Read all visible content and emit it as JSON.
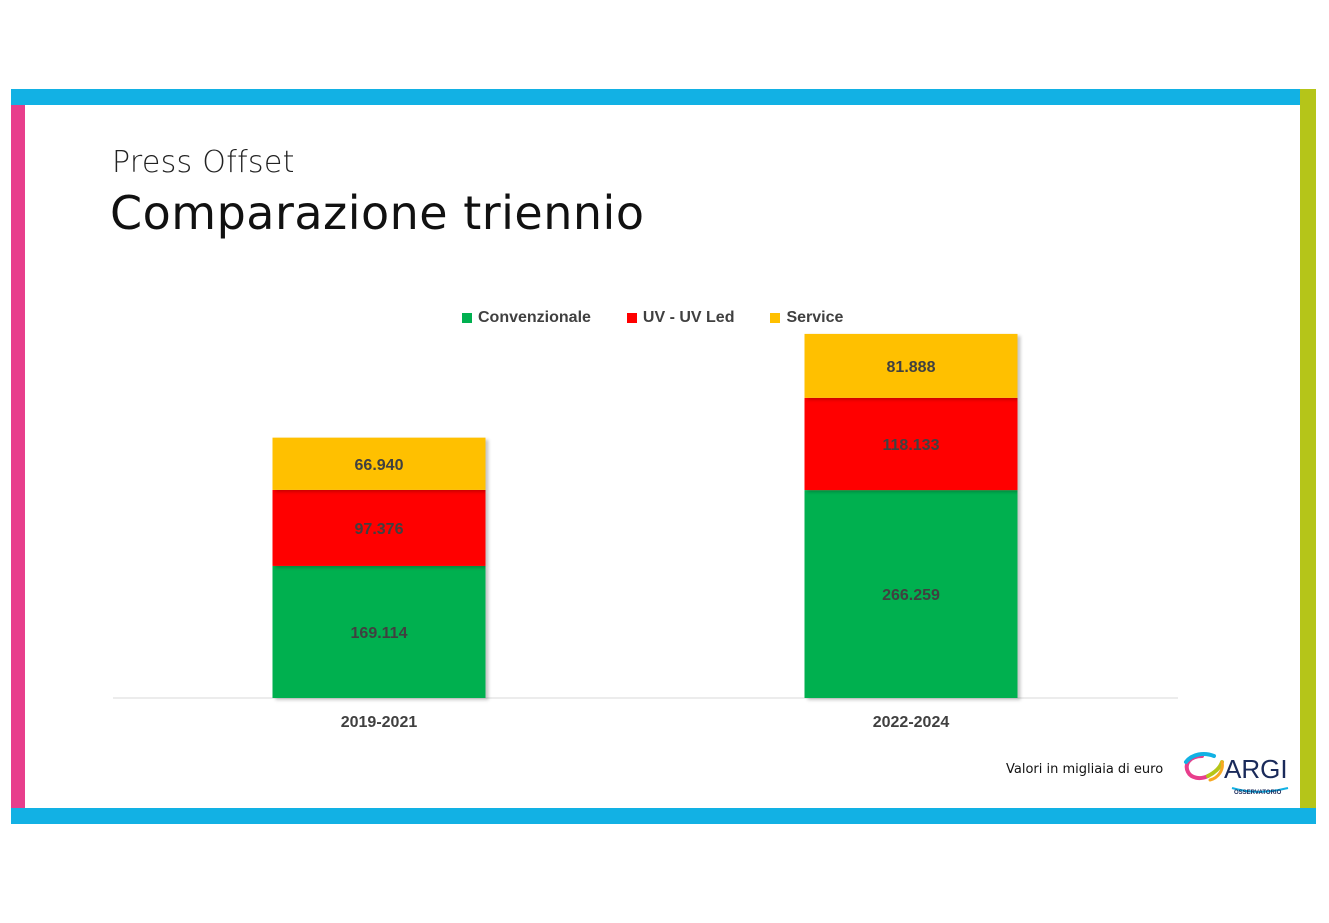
{
  "slide": {
    "subtitle": "Press Offset",
    "title": "Comparazione triennio",
    "note": "Valori in migliaia di euro"
  },
  "logo": {
    "text": "ARGI",
    "subtext": "OSSERVATORIO"
  },
  "colors": {
    "frame_top_bottom": "#12b1e4",
    "frame_left": "#e83e8c",
    "frame_right": "#b5c519"
  },
  "chart_data": {
    "type": "bar",
    "stacked": true,
    "categories": [
      "2019-2021",
      "2022-2024"
    ],
    "series": [
      {
        "name": "Convenzionale",
        "color": "#00b050",
        "values": [
          169114,
          266259
        ],
        "labels": [
          "169.114",
          "266.259"
        ]
      },
      {
        "name": "UV - UV Led",
        "color": "#ff0000",
        "values": [
          97376,
          118133
        ],
        "labels": [
          "97.376",
          "118.133"
        ]
      },
      {
        "name": "Service",
        "color": "#ffc000",
        "values": [
          66940,
          81888
        ],
        "labels": [
          "66.940",
          "81.888"
        ]
      }
    ],
    "legend_position": "top-center",
    "grid": false,
    "ylim": [
      0,
      470000
    ]
  }
}
